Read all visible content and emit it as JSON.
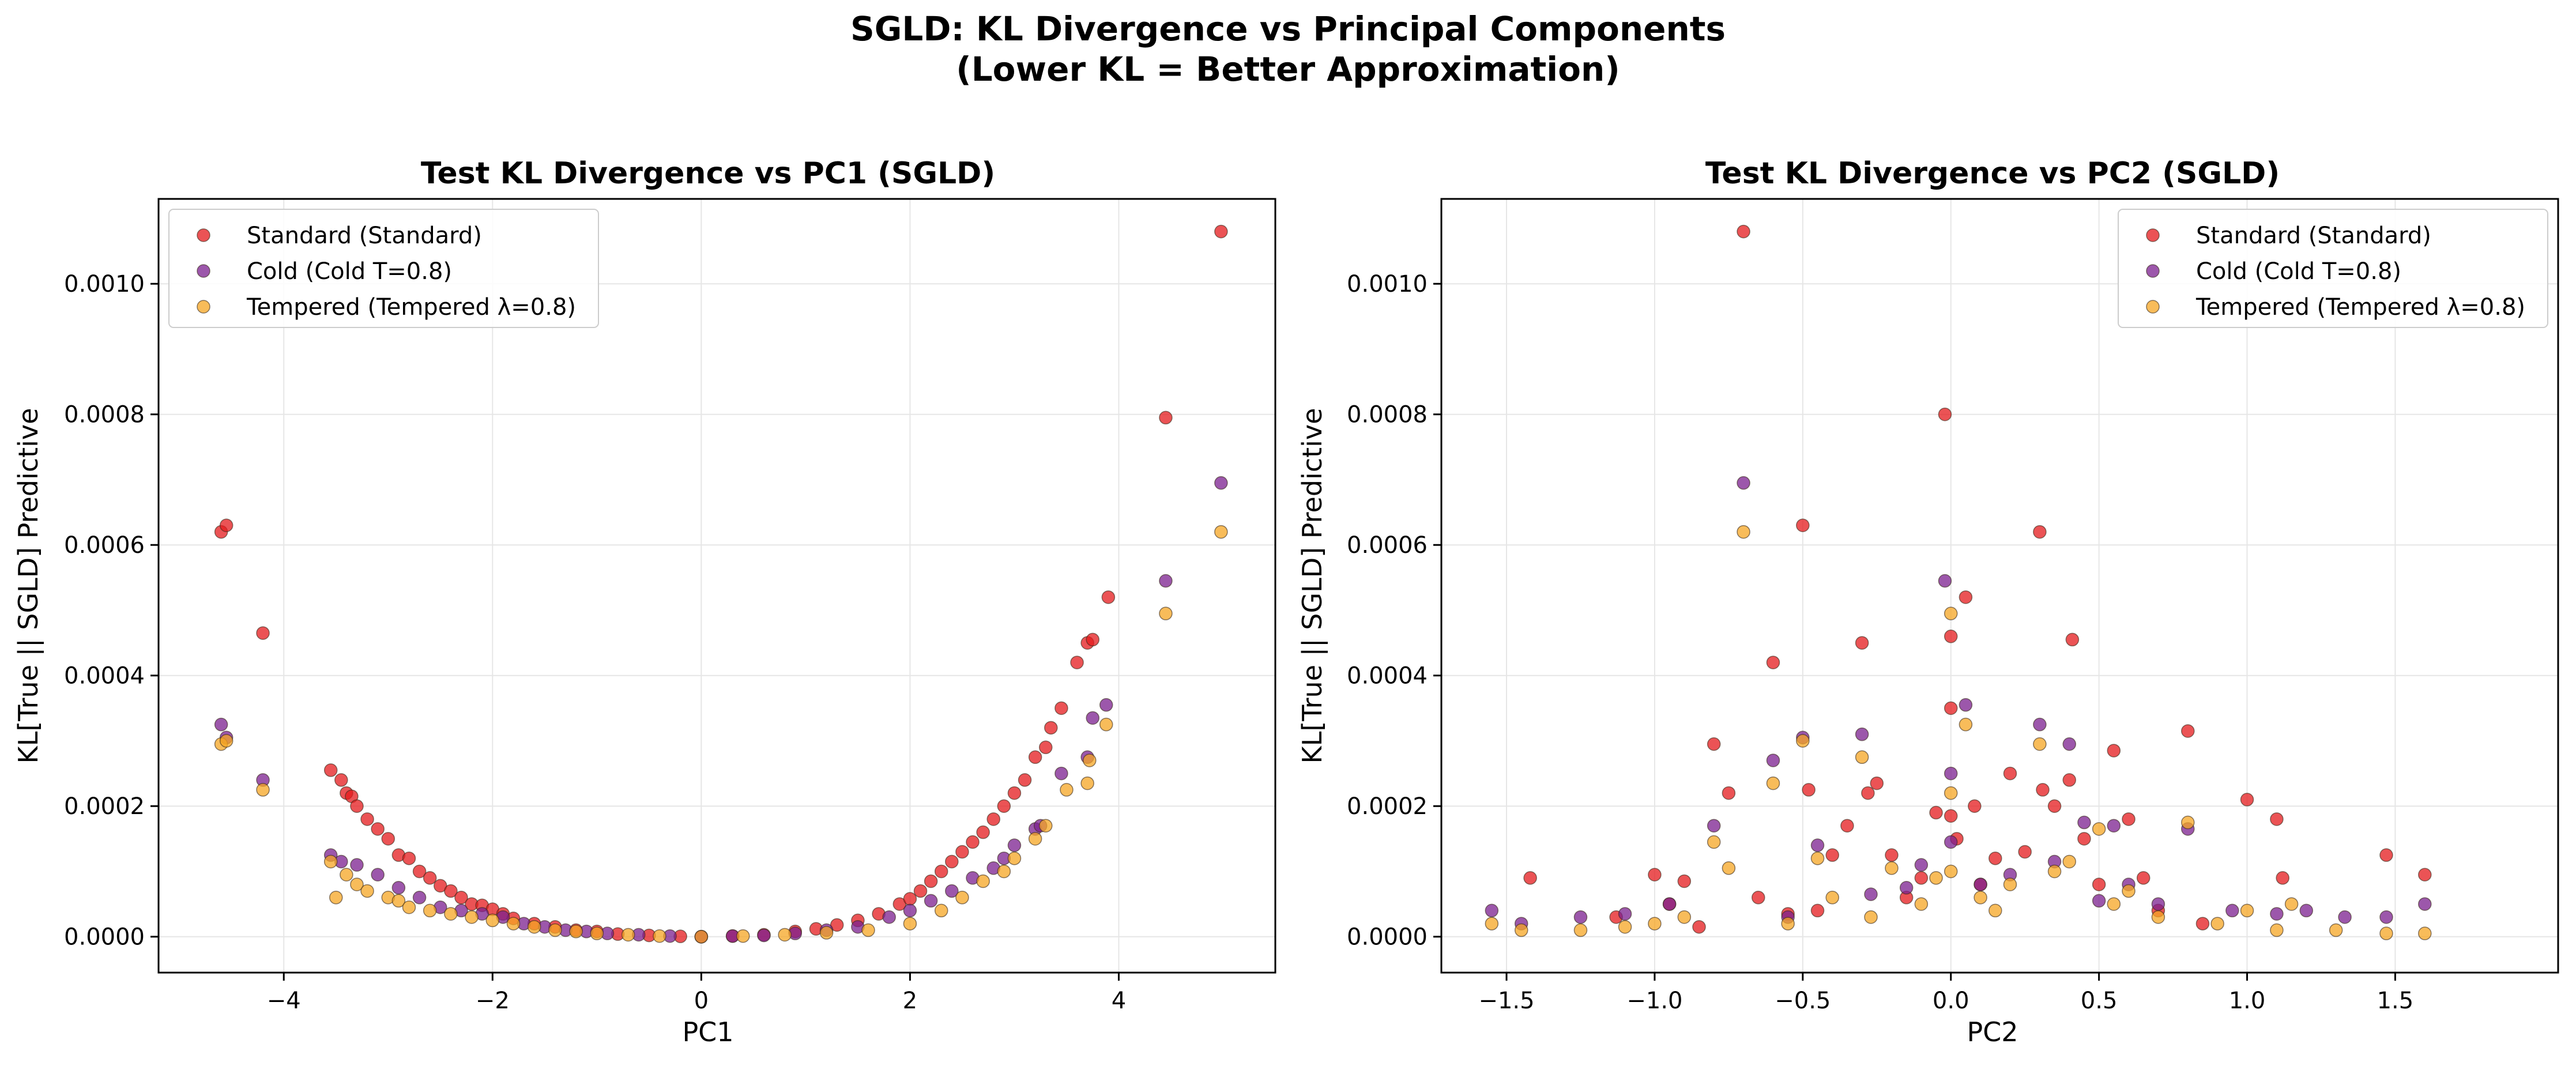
{
  "suptitle": [
    "SGLD: KL Divergence vs Principal Components",
    "(Lower KL = Better Approximation)"
  ],
  "colors": {
    "Standard": "#e41a1c",
    "Cold": "#7b1f8f",
    "Tempered": "#f5a623"
  },
  "chart_data": [
    {
      "type": "scatter",
      "title": "Test KL Divergence vs PC1 (SGLD)",
      "xlabel": "PC1",
      "ylabel": "KL[True || SGLD] Predictive",
      "xlim": [
        -5.2,
        5.5
      ],
      "ylim": [
        -5.5e-05,
        0.00113
      ],
      "xticks": [
        -4,
        -2,
        0,
        2,
        4
      ],
      "xtick_labels": [
        "−4",
        "−2",
        "0",
        "2",
        "4"
      ],
      "yticks": [
        0,
        0.0002,
        0.0004,
        0.0006,
        0.0008,
        0.001
      ],
      "ytick_labels": [
        "0.0000",
        "0.0002",
        "0.0004",
        "0.0006",
        "0.0008",
        "0.0010"
      ],
      "grid": true,
      "legend_position": "upper left",
      "series": [
        {
          "name": "Standard (Standard)",
          "color": "#e41a1c",
          "x": [
            -4.6,
            -4.55,
            -4.2,
            -3.55,
            -3.45,
            -3.4,
            -3.35,
            -3.3,
            -3.2,
            -3.1,
            -3.0,
            -2.9,
            -2.8,
            -2.7,
            -2.6,
            -2.5,
            -2.4,
            -2.3,
            -2.2,
            -2.1,
            -2.0,
            -1.9,
            -1.8,
            -1.6,
            -1.4,
            -1.2,
            -1.0,
            -0.8,
            -0.5,
            -0.2,
            0.0,
            0.3,
            0.6,
            0.9,
            1.1,
            1.3,
            1.5,
            1.7,
            1.9,
            2.0,
            2.1,
            2.2,
            2.3,
            2.4,
            2.5,
            2.6,
            2.7,
            2.8,
            2.9,
            3.0,
            3.1,
            3.2,
            3.3,
            3.35,
            3.45,
            3.6,
            3.7,
            3.75,
            3.9,
            4.45,
            4.98
          ],
          "y": [
            0.00062,
            0.00063,
            0.000465,
            0.000255,
            0.00024,
            0.00022,
            0.000215,
            0.0002,
            0.00018,
            0.000165,
            0.00015,
            0.000125,
            0.00012,
            0.0001,
            9e-05,
            7.8e-05,
            7e-05,
            6e-05,
            5e-05,
            4.8e-05,
            4.2e-05,
            3.5e-05,
            2.8e-05,
            2e-05,
            1.5e-05,
            1e-05,
            8e-06,
            4e-06,
            2e-06,
            5e-07,
            0.0,
            1e-06,
            3e-06,
            8e-06,
            1.2e-05,
            1.8e-05,
            2.5e-05,
            3.5e-05,
            5e-05,
            5.8e-05,
            7e-05,
            8.5e-05,
            0.0001,
            0.000115,
            0.00013,
            0.000145,
            0.00016,
            0.00018,
            0.0002,
            0.00022,
            0.00024,
            0.000275,
            0.00029,
            0.00032,
            0.00035,
            0.00042,
            0.00045,
            0.000455,
            0.00052,
            0.000795,
            0.00108
          ]
        },
        {
          "name": "Cold (Cold T=0.8)",
          "color": "#7b1f8f",
          "x": [
            -4.6,
            -4.55,
            -4.2,
            -3.55,
            -3.45,
            -3.3,
            -3.1,
            -2.9,
            -2.7,
            -2.5,
            -2.3,
            -2.1,
            -1.9,
            -1.7,
            -1.5,
            -1.3,
            -1.1,
            -0.9,
            -0.6,
            -0.3,
            0.0,
            0.3,
            0.6,
            0.9,
            1.2,
            1.5,
            1.8,
            2.0,
            2.2,
            2.4,
            2.6,
            2.8,
            2.9,
            3.0,
            3.2,
            3.25,
            3.45,
            3.7,
            3.75,
            3.88,
            4.45,
            4.98
          ],
          "y": [
            0.000325,
            0.000305,
            0.00024,
            0.000125,
            0.000115,
            0.00011,
            9.5e-05,
            7.5e-05,
            6e-05,
            4.5e-05,
            4e-05,
            3.5e-05,
            3e-05,
            2e-05,
            1.5e-05,
            1e-05,
            8e-06,
            5e-06,
            3e-06,
            1e-06,
            0.0,
            1e-06,
            2e-06,
            5e-06,
            1e-05,
            1.5e-05,
            3e-05,
            4e-05,
            5.5e-05,
            7e-05,
            9e-05,
            0.000105,
            0.00012,
            0.00014,
            0.000165,
            0.00017,
            0.00025,
            0.000275,
            0.000335,
            0.000355,
            0.000545,
            0.000695
          ]
        },
        {
          "name": "Tempered (Tempered λ=0.8)",
          "color": "#f5a623",
          "x": [
            -4.6,
            -4.55,
            -4.2,
            -3.55,
            -3.5,
            -3.4,
            -3.3,
            -3.2,
            -3.0,
            -2.9,
            -2.8,
            -2.6,
            -2.4,
            -2.2,
            -2.0,
            -1.8,
            -1.6,
            -1.4,
            -1.2,
            -1.0,
            -0.7,
            -0.4,
            0.0,
            0.4,
            0.8,
            1.2,
            1.6,
            2.0,
            2.3,
            2.5,
            2.7,
            2.9,
            3.0,
            3.2,
            3.3,
            3.5,
            3.7,
            3.72,
            3.88,
            4.45,
            4.98
          ],
          "y": [
            0.000295,
            0.0003,
            0.000225,
            0.000115,
            6e-05,
            9.5e-05,
            8e-05,
            7e-05,
            6e-05,
            5.5e-05,
            4.5e-05,
            4e-05,
            3.5e-05,
            3e-05,
            2.5e-05,
            2e-05,
            1.5e-05,
            1e-05,
            8e-06,
            5e-06,
            3e-06,
            1e-06,
            0.0,
            1e-06,
            3e-06,
            6e-06,
            1e-05,
            2e-05,
            4e-05,
            6e-05,
            8.5e-05,
            0.0001,
            0.00012,
            0.00015,
            0.00017,
            0.000225,
            0.000235,
            0.00027,
            0.000325,
            0.000495,
            0.00062
          ]
        }
      ]
    },
    {
      "type": "scatter",
      "title": "Test KL Divergence vs PC2 (SGLD)",
      "xlabel": "PC2",
      "ylabel": "KL[True || SGLD] Predictive",
      "xlim": [
        -1.72,
        2.05
      ],
      "ylim": [
        -5.5e-05,
        0.00113
      ],
      "xticks": [
        -1.5,
        -1.0,
        -0.5,
        0.0,
        0.5,
        1.0,
        1.5
      ],
      "xtick_labels": [
        "−1.5",
        "−1.0",
        "−0.5",
        "0.0",
        "0.5",
        "1.0",
        "1.5"
      ],
      "yticks": [
        0,
        0.0002,
        0.0004,
        0.0006,
        0.0008,
        0.001
      ],
      "ytick_labels": [
        "0.0000",
        "0.0002",
        "0.0004",
        "0.0006",
        "0.0008",
        "0.0010"
      ],
      "grid": true,
      "legend_position": "upper right",
      "series": [
        {
          "name": "Standard (Standard)",
          "color": "#e41a1c",
          "x": [
            -1.42,
            -1.13,
            -1.0,
            -0.95,
            -0.9,
            -0.85,
            -0.8,
            -0.75,
            -0.7,
            -0.65,
            -0.6,
            -0.55,
            -0.5,
            -0.48,
            -0.45,
            -0.4,
            -0.35,
            -0.3,
            -0.28,
            -0.25,
            -0.2,
            -0.15,
            -0.1,
            -0.05,
            -0.02,
            0.0,
            0.0,
            0.0,
            0.02,
            0.05,
            0.08,
            0.1,
            0.15,
            0.2,
            0.25,
            0.3,
            0.31,
            0.35,
            0.4,
            0.41,
            0.45,
            0.5,
            0.55,
            0.6,
            0.65,
            0.7,
            0.8,
            0.85,
            1.0,
            1.1,
            1.12,
            1.47,
            1.6
          ],
          "y": [
            9e-05,
            3e-05,
            9.5e-05,
            5e-05,
            8.5e-05,
            1.5e-05,
            0.000295,
            0.00022,
            0.00108,
            6e-05,
            0.00042,
            3.5e-05,
            0.00063,
            0.000225,
            4e-05,
            0.000125,
            0.00017,
            0.00045,
            0.00022,
            0.000235,
            0.000125,
            6e-05,
            9e-05,
            0.00019,
            0.0008,
            0.00046,
            0.00035,
            0.000185,
            0.00015,
            0.00052,
            0.0002,
            8e-05,
            0.00012,
            0.00025,
            0.00013,
            0.00062,
            0.000225,
            0.0002,
            0.00024,
            0.000455,
            0.00015,
            8e-05,
            0.000285,
            0.00018,
            9e-05,
            4e-05,
            0.000315,
            2e-05,
            0.00021,
            0.00018,
            9e-05,
            0.000125,
            9.5e-05
          ]
        },
        {
          "name": "Cold (Cold T=0.8)",
          "color": "#7b1f8f",
          "x": [
            -1.55,
            -1.45,
            -1.25,
            -1.1,
            -0.95,
            -0.8,
            -0.7,
            -0.6,
            -0.55,
            -0.5,
            -0.45,
            -0.3,
            -0.27,
            -0.15,
            -0.1,
            -0.02,
            0.0,
            0.0,
            0.05,
            0.1,
            0.2,
            0.3,
            0.35,
            0.4,
            0.45,
            0.5,
            0.55,
            0.6,
            0.7,
            0.8,
            0.95,
            1.1,
            1.2,
            1.33,
            1.47,
            1.6
          ],
          "y": [
            4e-05,
            2e-05,
            3e-05,
            3.5e-05,
            5e-05,
            0.00017,
            0.000695,
            0.00027,
            3e-05,
            0.000305,
            0.00014,
            0.00031,
            6.5e-05,
            7.5e-05,
            0.00011,
            0.000545,
            0.00025,
            0.000145,
            0.000355,
            8e-05,
            9.5e-05,
            0.000325,
            0.000115,
            0.000295,
            0.000175,
            5.5e-05,
            0.00017,
            8e-05,
            5e-05,
            0.000165,
            4e-05,
            3.5e-05,
            4e-05,
            3e-05,
            3e-05,
            5e-05
          ]
        },
        {
          "name": "Tempered (Tempered λ=0.8)",
          "color": "#f5a623",
          "x": [
            -1.55,
            -1.45,
            -1.25,
            -1.1,
            -1.0,
            -0.9,
            -0.8,
            -0.75,
            -0.7,
            -0.6,
            -0.55,
            -0.5,
            -0.45,
            -0.4,
            -0.3,
            -0.27,
            -0.2,
            -0.1,
            -0.05,
            0.0,
            0.0,
            0.0,
            0.05,
            0.1,
            0.15,
            0.2,
            0.3,
            0.35,
            0.4,
            0.5,
            0.55,
            0.6,
            0.7,
            0.8,
            0.9,
            1.0,
            1.1,
            1.15,
            1.3,
            1.47,
            1.6
          ],
          "y": [
            2e-05,
            1e-05,
            1e-05,
            1.5e-05,
            2e-05,
            3e-05,
            0.000145,
            0.000105,
            0.00062,
            0.000235,
            2e-05,
            0.0003,
            0.00012,
            6e-05,
            0.000275,
            3e-05,
            0.000105,
            5e-05,
            9e-05,
            0.000495,
            0.00022,
            0.0001,
            0.000325,
            6e-05,
            4e-05,
            8e-05,
            0.000295,
            0.0001,
            0.000115,
            0.000165,
            5e-05,
            7e-05,
            3e-05,
            0.000175,
            2e-05,
            4e-05,
            1e-05,
            5e-05,
            1e-05,
            5e-06,
            5e-06
          ]
        }
      ]
    }
  ]
}
